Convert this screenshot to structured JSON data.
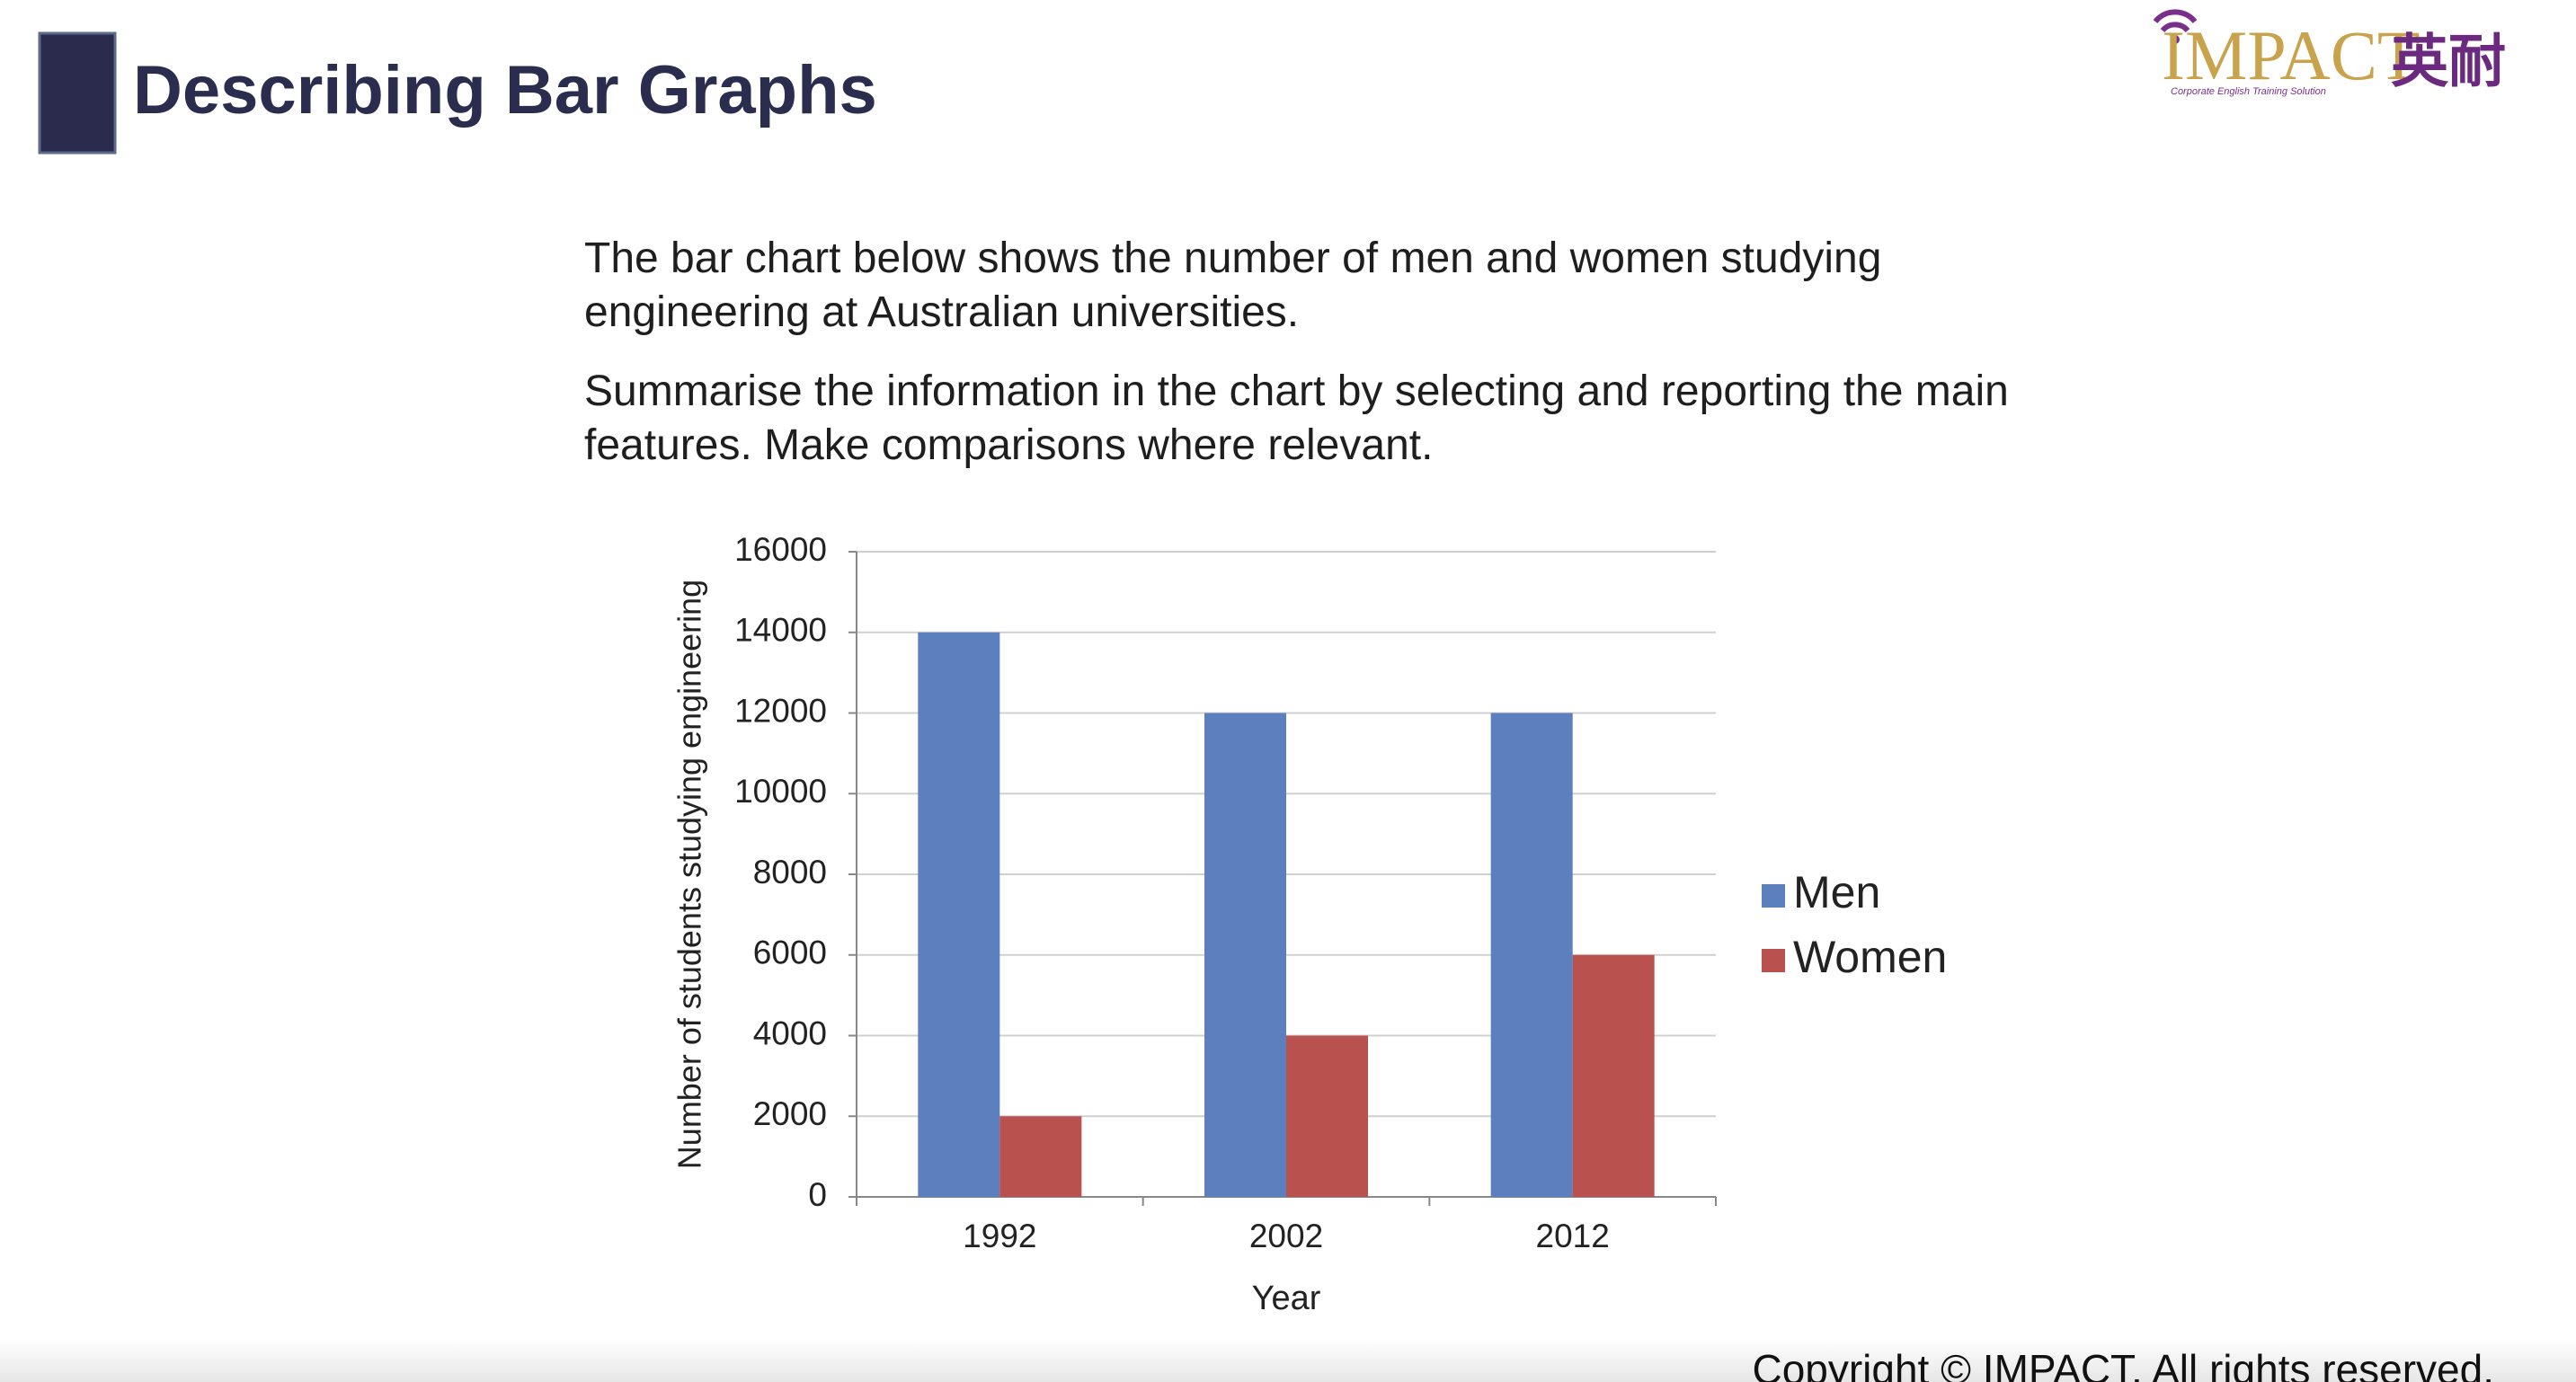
{
  "header": {
    "title": "Describing Bar Graphs",
    "logo": "IMPACT",
    "logo_cn": "英耐",
    "logo_tagline": "Corporate English Training Solution"
  },
  "prompt": [
    "The bar chart below shows the number of men and women studying engineering at Australian universities.",
    "Summarise the information in the chart by selecting and reporting the main features. Make comparisons where relevant."
  ],
  "chart_data": {
    "type": "bar",
    "categories": [
      "1992",
      "2002",
      "2012"
    ],
    "series": [
      {
        "name": "Men",
        "color": "#5b80bd",
        "values": [
          14000,
          12000,
          12000
        ]
      },
      {
        "name": "Women",
        "color": "#b9514f",
        "values": [
          2000,
          4000,
          6000
        ]
      }
    ],
    "x_label": "Year",
    "y_label": "Number of students studying engineering",
    "ylim": [
      0,
      16000
    ],
    "yticks": [
      0,
      2000,
      4000,
      6000,
      8000,
      10000,
      12000,
      14000,
      16000
    ],
    "grid": true,
    "legend": "right"
  },
  "footer": "Copyright © IMPACT. All rights reserved."
}
